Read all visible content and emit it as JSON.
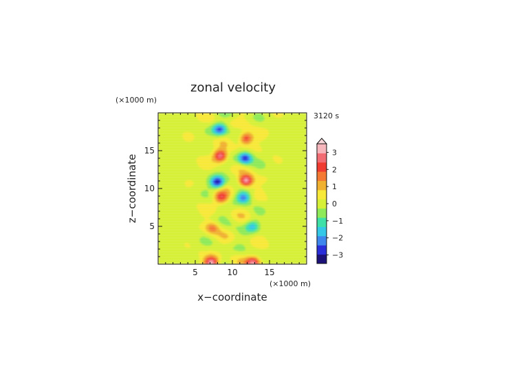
{
  "chart_data": {
    "type": "heatmap",
    "title": "zonal velocity",
    "time_label": "3120 s",
    "x_axis": {
      "label": "x−coordinate",
      "unit_label": "(×1000 m)",
      "range": [
        0,
        20
      ],
      "ticks": [
        5,
        10,
        15
      ],
      "tick_labels": [
        "5",
        "10",
        "15"
      ]
    },
    "y_axis": {
      "label": "z−coordinate",
      "unit_label": "(×1000 m)",
      "range": [
        0,
        20
      ],
      "ticks": [
        5,
        10,
        15
      ],
      "tick_labels": [
        "5",
        "10",
        "15"
      ]
    },
    "colorbar": {
      "range": [
        -3.5,
        3.5
      ],
      "ticks": [
        3,
        2,
        1,
        0,
        -1,
        -2,
        -3
      ],
      "tick_labels": [
        "3",
        "2",
        "1",
        "0",
        "−1",
        "−2",
        "−3"
      ]
    },
    "features": [
      {
        "x": 8.0,
        "z": 10.8,
        "u": -3.3
      },
      {
        "x": 11.8,
        "z": 11.0,
        "u": 3.4
      },
      {
        "x": 8.4,
        "z": 14.3,
        "u": 3.2
      },
      {
        "x": 11.7,
        "z": 14.0,
        "u": -3.0
      },
      {
        "x": 11.8,
        "z": 16.6,
        "u": 2.6
      },
      {
        "x": 8.3,
        "z": 17.8,
        "u": -2.6
      },
      {
        "x": 8.5,
        "z": 8.8,
        "u": 2.3
      },
      {
        "x": 11.5,
        "z": 8.8,
        "u": -2.3
      },
      {
        "x": 12.7,
        "z": 5.0,
        "u": -1.6
      },
      {
        "x": 7.3,
        "z": 4.8,
        "u": 1.5
      },
      {
        "x": 7.2,
        "z": 0.2,
        "u": 3.0
      },
      {
        "x": 12.8,
        "z": 0.2,
        "u": 2.8
      }
    ],
    "colors": [
      "#1c1278",
      "#2a2ed8",
      "#3f86ec",
      "#35c8e6",
      "#3ee0a8",
      "#8eea58",
      "#d6f038",
      "#f8e838",
      "#f0b030",
      "#f47a34",
      "#f03c30",
      "#f26c74",
      "#f6b6bc"
    ]
  }
}
